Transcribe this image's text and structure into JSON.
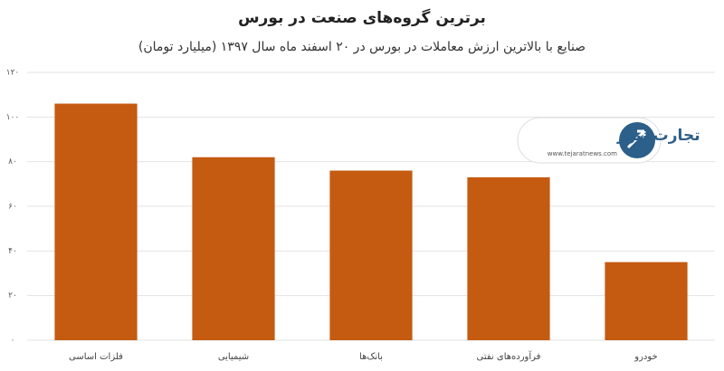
{
  "chart_data": {
    "type": "bar",
    "title": "برترین گروه‌های صنعت در بورس",
    "subtitle": "صنایع با بالاترین ارزش معاملات در بورس در ۲۰ اسفند ماه سال ۱۳۹۷ (میلیارد تومان)",
    "categories": [
      "فلزات اساسی",
      "شیمیایی",
      "بانک‌ها",
      "فرآورده‌های نفتی",
      "خودرو"
    ],
    "values": [
      106,
      82,
      76,
      73,
      35
    ],
    "color": "#c55a11",
    "ylim": [
      0,
      120
    ],
    "yticks": [
      {
        "value": 0,
        "label": "۰"
      },
      {
        "value": 20,
        "label": "۲۰"
      },
      {
        "value": 40,
        "label": "۴۰"
      },
      {
        "value": 60,
        "label": "۶۰"
      },
      {
        "value": 80,
        "label": "۸۰"
      },
      {
        "value": 100,
        "label": "۱۰۰"
      },
      {
        "value": 120,
        "label": "۱۲۰"
      }
    ],
    "grid": true,
    "logo": {
      "name": "تجارت نیوز",
      "url": "www.tejaratnews.com"
    }
  }
}
